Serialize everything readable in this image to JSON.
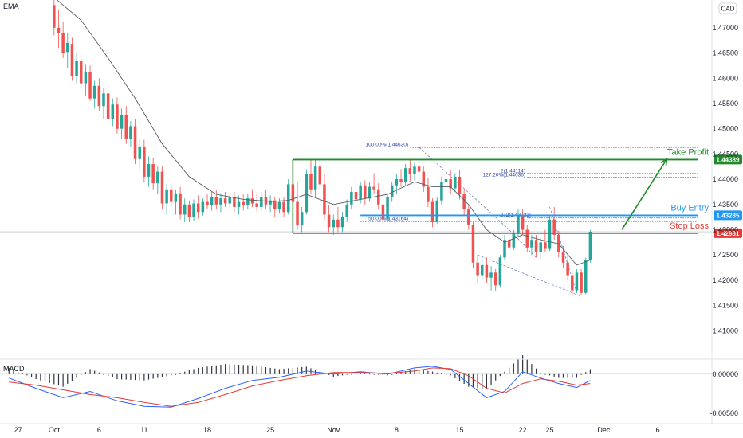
{
  "chart_data": [
    {
      "type": "candlestick",
      "indicator_label": "EMA",
      "currency_label": "CAD",
      "ylim": [
        1.405,
        1.4755
      ],
      "y_ticks": [
        "1.47000",
        "1.46500",
        "1.46000",
        "1.45500",
        "1.45000",
        "1.44500",
        "1.44000",
        "1.43500",
        "1.43000",
        "1.42500",
        "1.42000",
        "1.41500",
        "1.41000"
      ],
      "x_ticks": [
        "27",
        "Oct",
        "6",
        "11",
        "18",
        "25",
        "Nov",
        "8",
        "15",
        "22",
        "25",
        "Dec",
        "6"
      ],
      "x_tick_days": [
        -4,
        0,
        5,
        10,
        17,
        24,
        31,
        38,
        45,
        52,
        55,
        61,
        67
      ],
      "xlim": [
        -6,
        73
      ],
      "levels": [
        {
          "label": "Take Profit",
          "value": 1.44389,
          "tag": "1.44389",
          "color": "#1f8a2a"
        },
        {
          "label": "Buy Entry",
          "value": 1.43285,
          "tag": "1.43285",
          "color": "#2196f3"
        },
        {
          "label": "Stop Loss",
          "value": 1.42931,
          "tag": "1.42931",
          "color": "#e53935"
        }
      ],
      "range_box": {
        "from_day": 26.5,
        "to_day": 71.5,
        "top": 1.44389,
        "bottom": 1.42931,
        "color": "#1f8a2a"
      },
      "fib_labels": [
        {
          "text": "100.00%(1.44630)",
          "value": 1.4463
        },
        {
          "text": "50.00%(1.43164)",
          "value": 1.43164
        },
        {
          "text": "127.20%(1.44036)",
          "value": 1.44036
        },
        {
          "text": "2(1.44114)",
          "value": 1.44114
        },
        {
          "text": "272(1.43233)",
          "value": 1.43233
        }
      ],
      "current_price": 1.4296,
      "candles": [
        [
          0,
          1.4745,
          1.4755,
          1.4685,
          1.47
        ],
        [
          0.5,
          1.47,
          1.4735,
          1.466,
          1.469
        ],
        [
          1,
          1.469,
          1.4712,
          1.464,
          1.465
        ],
        [
          1.5,
          1.4652,
          1.469,
          1.462,
          1.467
        ],
        [
          2,
          1.4668,
          1.468,
          1.4595,
          1.4605
        ],
        [
          2.5,
          1.4605,
          1.465,
          1.459,
          1.4635
        ],
        [
          3,
          1.4635,
          1.4648,
          1.458,
          1.459
        ],
        [
          3.5,
          1.459,
          1.4628,
          1.4565,
          1.4612
        ],
        [
          4,
          1.4612,
          1.4625,
          1.4555,
          1.456
        ],
        [
          4.5,
          1.456,
          1.4595,
          1.454,
          1.4585
        ],
        [
          5,
          1.4585,
          1.46,
          1.4535,
          1.4545
        ],
        [
          5.5,
          1.4545,
          1.458,
          1.452,
          1.457
        ],
        [
          6,
          1.457,
          1.4588,
          1.451,
          1.452
        ],
        [
          6.5,
          1.452,
          1.456,
          1.4505,
          1.4548
        ],
        [
          7,
          1.4548,
          1.4562,
          1.449,
          1.45
        ],
        [
          7.5,
          1.45,
          1.454,
          1.448,
          1.4528
        ],
        [
          8,
          1.4528,
          1.4545,
          1.447,
          1.448
        ],
        [
          8.5,
          1.448,
          1.4515,
          1.4465,
          1.4505
        ],
        [
          9,
          1.4505,
          1.452,
          1.443,
          1.444
        ],
        [
          9.5,
          1.444,
          1.448,
          1.442,
          1.4465
        ],
        [
          10,
          1.4465,
          1.4478,
          1.4395,
          1.4405
        ],
        [
          10.5,
          1.4405,
          1.4445,
          1.4385,
          1.443
        ],
        [
          11,
          1.443,
          1.4442,
          1.438,
          1.4392
        ],
        [
          11.5,
          1.4392,
          1.4425,
          1.437,
          1.4415
        ],
        [
          12,
          1.4415,
          1.4425,
          1.434,
          1.4352
        ],
        [
          12.5,
          1.4352,
          1.439,
          1.433,
          1.438
        ],
        [
          13,
          1.438,
          1.4392,
          1.4345,
          1.4355
        ],
        [
          13.5,
          1.4355,
          1.438,
          1.433,
          1.4372
        ],
        [
          14,
          1.4372,
          1.4385,
          1.432,
          1.433
        ],
        [
          14.5,
          1.433,
          1.4362,
          1.4315,
          1.435
        ],
        [
          15,
          1.435,
          1.4358,
          1.4315,
          1.4325
        ],
        [
          15.5,
          1.4325,
          1.436,
          1.4318,
          1.4352
        ],
        [
          16,
          1.4352,
          1.4368,
          1.4322,
          1.4335
        ],
        [
          16.5,
          1.4335,
          1.4362,
          1.4328,
          1.4355
        ],
        [
          17,
          1.4355,
          1.437,
          1.434,
          1.4348
        ],
        [
          17.5,
          1.4348,
          1.4375,
          1.4338,
          1.4365
        ],
        [
          18,
          1.4365,
          1.4378,
          1.434,
          1.435
        ],
        [
          18.5,
          1.435,
          1.4372,
          1.4335,
          1.4362
        ],
        [
          19,
          1.4362,
          1.4375,
          1.4345,
          1.4352
        ],
        [
          19.5,
          1.4352,
          1.4372,
          1.4342,
          1.4365
        ],
        [
          20,
          1.4365,
          1.4375,
          1.4335,
          1.4345
        ],
        [
          20.5,
          1.4345,
          1.4368,
          1.433,
          1.4355
        ],
        [
          21,
          1.4355,
          1.437,
          1.4338,
          1.4348
        ],
        [
          21.5,
          1.4348,
          1.4372,
          1.434,
          1.4362
        ],
        [
          22,
          1.4362,
          1.438,
          1.4345,
          1.4352
        ],
        [
          22.5,
          1.4352,
          1.437,
          1.4335,
          1.4345
        ],
        [
          23,
          1.4345,
          1.4375,
          1.4338,
          1.4365
        ],
        [
          23.5,
          1.4365,
          1.4378,
          1.434,
          1.435
        ],
        [
          24,
          1.435,
          1.4368,
          1.4335,
          1.4358
        ],
        [
          24.5,
          1.4358,
          1.4365,
          1.4325,
          1.434
        ],
        [
          25,
          1.434,
          1.4362,
          1.4332,
          1.4355
        ],
        [
          25.5,
          1.4355,
          1.4365,
          1.4325,
          1.4335
        ],
        [
          26,
          1.4335,
          1.44,
          1.433,
          1.439
        ],
        [
          26.5,
          1.439,
          1.444,
          1.434,
          1.4355
        ],
        [
          27,
          1.4355,
          1.4395,
          1.43,
          1.431
        ],
        [
          27.5,
          1.431,
          1.4345,
          1.4295,
          1.4335
        ],
        [
          28,
          1.4335,
          1.442,
          1.433,
          1.441
        ],
        [
          28.5,
          1.441,
          1.444,
          1.437,
          1.438
        ],
        [
          29,
          1.438,
          1.444,
          1.4365,
          1.4425
        ],
        [
          29.5,
          1.4425,
          1.444,
          1.438,
          1.439
        ],
        [
          30,
          1.439,
          1.441,
          1.432,
          1.433
        ],
        [
          30.5,
          1.433,
          1.4348,
          1.4295,
          1.4305
        ],
        [
          31,
          1.4305,
          1.433,
          1.429,
          1.432
        ],
        [
          31.5,
          1.432,
          1.4345,
          1.4295,
          1.4305
        ],
        [
          32,
          1.4305,
          1.4335,
          1.4295,
          1.4325
        ],
        [
          32.5,
          1.4325,
          1.436,
          1.4315,
          1.435
        ],
        [
          33,
          1.435,
          1.4385,
          1.434,
          1.4375
        ],
        [
          33.5,
          1.4375,
          1.4398,
          1.435,
          1.436
        ],
        [
          34,
          1.436,
          1.4395,
          1.4352,
          1.4388
        ],
        [
          34.5,
          1.4388,
          1.4398,
          1.435,
          1.4362
        ],
        [
          35,
          1.4362,
          1.4395,
          1.4355,
          1.4385
        ],
        [
          35.5,
          1.4385,
          1.4412,
          1.437,
          1.438
        ],
        [
          36,
          1.438,
          1.4392,
          1.434,
          1.435
        ],
        [
          36.5,
          1.435,
          1.4358,
          1.431,
          1.432
        ],
        [
          37,
          1.432,
          1.4372,
          1.4315,
          1.4365
        ],
        [
          37.5,
          1.4365,
          1.4395,
          1.4355,
          1.4388
        ],
        [
          38,
          1.4388,
          1.441,
          1.437,
          1.44
        ],
        [
          38.5,
          1.44,
          1.442,
          1.4385,
          1.4395
        ],
        [
          39,
          1.4395,
          1.443,
          1.4388,
          1.4422
        ],
        [
          39.5,
          1.4422,
          1.4438,
          1.4395,
          1.441
        ],
        [
          40,
          1.441,
          1.4432,
          1.4398,
          1.4425
        ],
        [
          40.5,
          1.4425,
          1.4463,
          1.44,
          1.4415
        ],
        [
          41,
          1.4415,
          1.4425,
          1.4375,
          1.4385
        ],
        [
          41.5,
          1.4385,
          1.4402,
          1.4345,
          1.4355
        ],
        [
          42,
          1.4355,
          1.4362,
          1.4305,
          1.4315
        ],
        [
          42.5,
          1.4315,
          1.4365,
          1.4312,
          1.4358
        ],
        [
          43,
          1.4358,
          1.4405,
          1.435,
          1.4395
        ],
        [
          43.5,
          1.4395,
          1.442,
          1.4385,
          1.44
        ],
        [
          44,
          1.44,
          1.4418,
          1.437,
          1.4382
        ],
        [
          44.5,
          1.4382,
          1.4412,
          1.4375,
          1.4405
        ],
        [
          45,
          1.4405,
          1.4418,
          1.436,
          1.437
        ],
        [
          45.5,
          1.437,
          1.438,
          1.433,
          1.434
        ],
        [
          46,
          1.434,
          1.435,
          1.43,
          1.431
        ],
        [
          46.5,
          1.431,
          1.4318,
          1.4225,
          1.4235
        ],
        [
          47,
          1.4235,
          1.425,
          1.4195,
          1.421
        ],
        [
          47.5,
          1.421,
          1.424,
          1.42,
          1.423
        ],
        [
          48,
          1.423,
          1.4245,
          1.4195,
          1.4205
        ],
        [
          48.5,
          1.4205,
          1.4228,
          1.418,
          1.4215
        ],
        [
          49,
          1.4215,
          1.4222,
          1.4178,
          1.419
        ],
        [
          49.5,
          1.419,
          1.425,
          1.4185,
          1.4245
        ],
        [
          50,
          1.4245,
          1.429,
          1.424,
          1.428
        ],
        [
          50.5,
          1.428,
          1.4295,
          1.4255,
          1.4265
        ],
        [
          51,
          1.4265,
          1.43,
          1.426,
          1.4292
        ],
        [
          51.5,
          1.4292,
          1.434,
          1.4285,
          1.433
        ],
        [
          52,
          1.433,
          1.434,
          1.429,
          1.43
        ],
        [
          52.5,
          1.43,
          1.431,
          1.4255,
          1.4265
        ],
        [
          53,
          1.4265,
          1.429,
          1.425,
          1.428
        ],
        [
          53.5,
          1.428,
          1.429,
          1.4245,
          1.4255
        ],
        [
          54,
          1.4255,
          1.4285,
          1.424,
          1.4275
        ],
        [
          54.5,
          1.4275,
          1.43,
          1.4255,
          1.4262
        ],
        [
          55,
          1.4262,
          1.433,
          1.4258,
          1.432
        ],
        [
          55.5,
          1.432,
          1.4345,
          1.428,
          1.429
        ],
        [
          56,
          1.429,
          1.4298,
          1.4245,
          1.4255
        ],
        [
          56.5,
          1.4255,
          1.4268,
          1.4225,
          1.4235
        ],
        [
          57,
          1.4235,
          1.425,
          1.42,
          1.421
        ],
        [
          57.5,
          1.421,
          1.4218,
          1.4168,
          1.418
        ],
        [
          58,
          1.418,
          1.4222,
          1.4175,
          1.4215
        ],
        [
          58.5,
          1.4215,
          1.4222,
          1.417,
          1.4175
        ],
        [
          59,
          1.4175,
          1.4245,
          1.4172,
          1.424
        ],
        [
          59.5,
          1.424,
          1.43,
          1.4235,
          1.4296
        ]
      ],
      "ema_points": [
        [
          0,
          1.476
        ],
        [
          3,
          1.4715
        ],
        [
          6,
          1.464
        ],
        [
          9,
          1.456
        ],
        [
          12,
          1.447
        ],
        [
          15,
          1.4405
        ],
        [
          18,
          1.437
        ],
        [
          21,
          1.436
        ],
        [
          24,
          1.4356
        ],
        [
          26,
          1.4358
        ],
        [
          28,
          1.437
        ],
        [
          31,
          1.435
        ],
        [
          34,
          1.436
        ],
        [
          37,
          1.437
        ],
        [
          40,
          1.4395
        ],
        [
          42,
          1.4385
        ],
        [
          44,
          1.4385
        ],
        [
          46,
          1.435
        ],
        [
          48,
          1.43
        ],
        [
          50,
          1.4275
        ],
        [
          52,
          1.429
        ],
        [
          54,
          1.428
        ],
        [
          56,
          1.4272
        ],
        [
          58,
          1.423
        ],
        [
          59.5,
          1.424
        ]
      ],
      "macd": {
        "label": "MACD",
        "ylim": [
          -0.0059,
          0.0015
        ],
        "y_ticks": [
          "0.00000",
          "-0.00500"
        ],
        "macd_points": [
          [
            -5,
            -0.0005
          ],
          [
            -2,
            -0.0018
          ],
          [
            1,
            -0.003
          ],
          [
            4,
            -0.0022
          ],
          [
            7,
            -0.0034
          ],
          [
            10,
            -0.0041
          ],
          [
            13,
            -0.0042
          ],
          [
            16,
            -0.0031
          ],
          [
            19,
            -0.0018
          ],
          [
            22,
            -0.0008
          ],
          [
            25,
            -0.0004
          ],
          [
            28,
            0.0004
          ],
          [
            31,
            0.0
          ],
          [
            34,
            0.0003
          ],
          [
            37,
            0.0
          ],
          [
            40,
            0.0008
          ],
          [
            42,
            0.001
          ],
          [
            44,
            0.0006
          ],
          [
            46,
            -0.0012
          ],
          [
            48,
            -0.003
          ],
          [
            50,
            -0.0022
          ],
          [
            52,
            0.0003
          ],
          [
            54,
            -0.0005
          ],
          [
            56,
            -0.0012
          ],
          [
            58,
            -0.0017
          ],
          [
            59.5,
            -0.0008
          ]
        ],
        "signal_points": [
          [
            -5,
            -0.001
          ],
          [
            -2,
            -0.0014
          ],
          [
            1,
            -0.002
          ],
          [
            4,
            -0.0026
          ],
          [
            7,
            -0.003
          ],
          [
            10,
            -0.0036
          ],
          [
            13,
            -0.0041
          ],
          [
            16,
            -0.0036
          ],
          [
            19,
            -0.0026
          ],
          [
            22,
            -0.0015
          ],
          [
            25,
            -0.0008
          ],
          [
            28,
            -0.0002
          ],
          [
            31,
            0.0002
          ],
          [
            34,
            0.0002
          ],
          [
            37,
            0.0001
          ],
          [
            40,
            0.0004
          ],
          [
            42,
            0.0008
          ],
          [
            44,
            0.0007
          ],
          [
            46,
            -0.0002
          ],
          [
            48,
            -0.0018
          ],
          [
            50,
            -0.0024
          ],
          [
            52,
            -0.0012
          ],
          [
            54,
            -0.0006
          ],
          [
            56,
            -0.0009
          ],
          [
            58,
            -0.0014
          ],
          [
            59.5,
            -0.0012
          ]
        ]
      }
    }
  ]
}
